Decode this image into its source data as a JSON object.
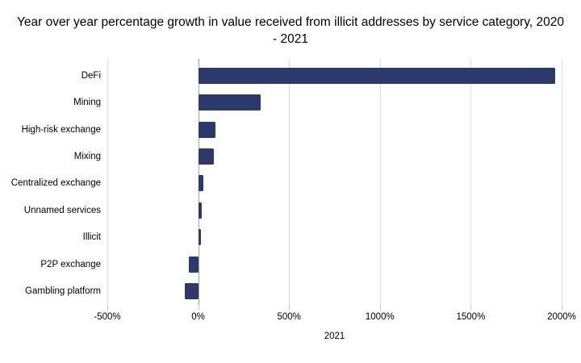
{
  "title": "Year over year percentage growth in value received from illicit addresses by service category, 2020 - 2021",
  "colors": {
    "bar": "#2b3a6b",
    "gridline": "#dcdcdc",
    "zero_line": "#a0a0a0",
    "background": "#ffffff",
    "text": "#000000"
  },
  "chart_data": {
    "type": "bar",
    "orientation": "horizontal",
    "title": "Year over year percentage growth in value received from illicit addresses by service category, 2020 - 2021",
    "categories": [
      "DeFi",
      "Mining",
      "High-risk exchange",
      "Mixing",
      "Centralized exchange",
      "Unnamed services",
      "Illicit",
      "P2P exchange",
      "Gambling platform"
    ],
    "values": [
      1964,
      345,
      95,
      85,
      30,
      20,
      15,
      -50,
      -75
    ],
    "units": "%",
    "xlabel": "2021",
    "ylabel": "",
    "xlim": [
      -500,
      2000
    ],
    "xticks": [
      {
        "value": -500,
        "label": "-500%"
      },
      {
        "value": 0,
        "label": "0%"
      },
      {
        "value": 500,
        "label": "500%"
      },
      {
        "value": 1000,
        "label": "1000%"
      },
      {
        "value": 1500,
        "label": "1500%"
      },
      {
        "value": 2000,
        "label": "2000%"
      }
    ],
    "grid": "vertical",
    "legend": "none"
  }
}
